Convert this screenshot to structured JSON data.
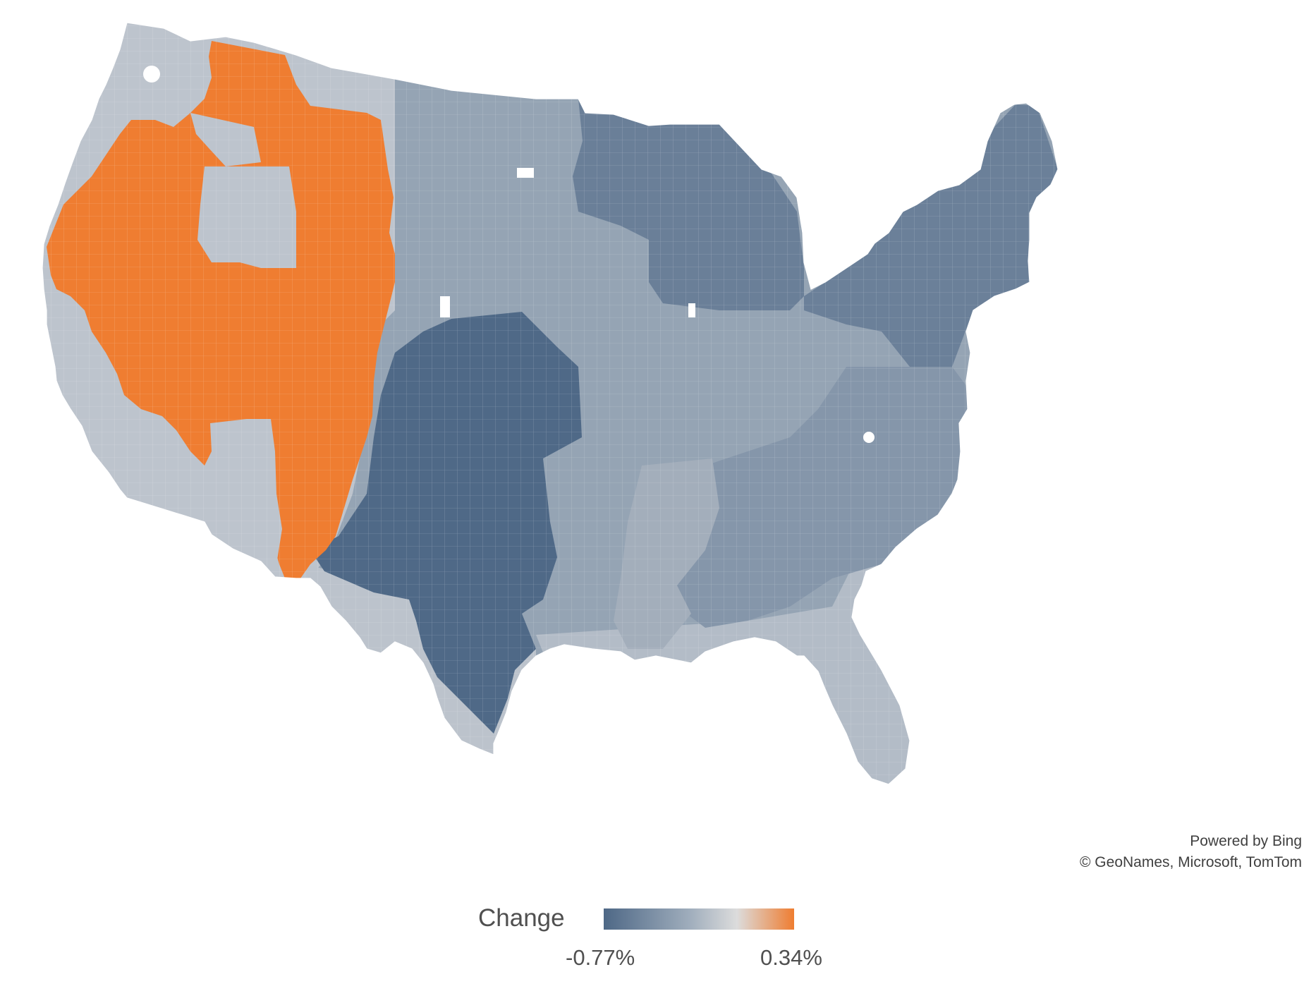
{
  "map": {
    "region": "Contiguous United States",
    "colors": {
      "light": "#bcc3cc",
      "light_mid": "#a6b1bd",
      "mid": "#8f9fb0",
      "mid_dark": "#7f90a4",
      "dark": "#6b8099",
      "darkest": "#4e6886",
      "highlight": "#ef7d31",
      "county_border": "#ffffff"
    }
  },
  "attribution": {
    "line1": "Powered by Bing",
    "line2": "© GeoNames, Microsoft, TomTom"
  },
  "legend": {
    "title": "Change",
    "min_label": "-0.77%",
    "max_label": "0.34%",
    "gradient": [
      "#4e6886",
      "#9fadbc",
      "#dcdcdc",
      "#ef7d31"
    ]
  }
}
